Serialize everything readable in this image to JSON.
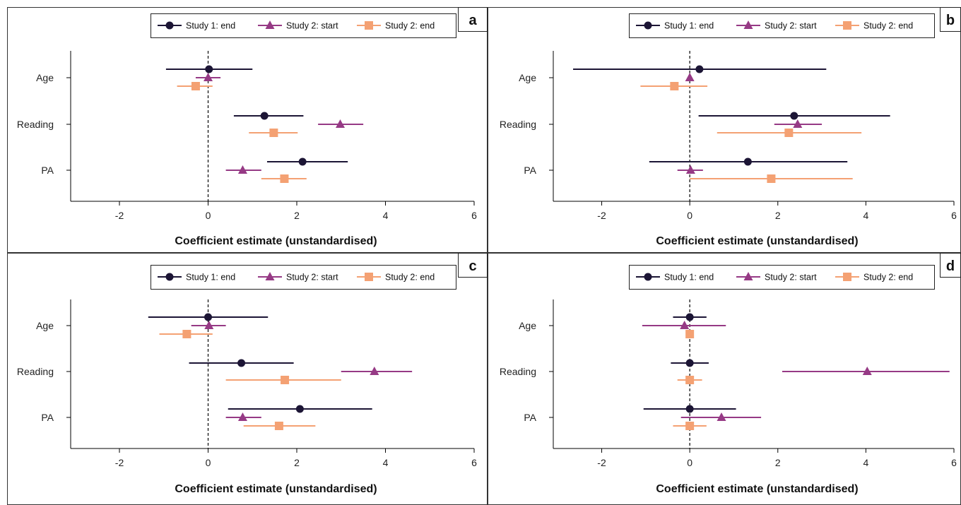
{
  "legend": [
    "Study 1: end",
    "Study 2: start",
    "Study 2: end"
  ],
  "colors": {
    "Study 1: end": "#1c1535",
    "Study 2: start": "#963a85",
    "Study 2: end": "#f4a173"
  },
  "markers": {
    "Study 1: end": "circle",
    "Study 2: start": "triangle",
    "Study 2: end": "square"
  },
  "chart_data": [
    {
      "panel": "a",
      "type": "scatter",
      "xlabel": "Coefficient estimate (unstandardised)",
      "xlim": [
        -3.1,
        6
      ],
      "xticks": [
        -2,
        0,
        2,
        4,
        6
      ],
      "reference_line": 0,
      "legend_position": "top",
      "categories": [
        "Age",
        "Reading",
        "PA"
      ],
      "series": [
        {
          "name": "Study 1: end",
          "points": [
            {
              "category": "Age",
              "estimate": 0.02,
              "lower": -0.95,
              "upper": 1.0
            },
            {
              "category": "Reading",
              "estimate": 1.27,
              "lower": 0.58,
              "upper": 2.15
            },
            {
              "category": "PA",
              "estimate": 2.13,
              "lower": 1.33,
              "upper": 3.15
            }
          ]
        },
        {
          "name": "Study 2: start",
          "points": [
            {
              "category": "Age",
              "estimate": 0.0,
              "lower": -0.28,
              "upper": 0.28
            },
            {
              "category": "Reading",
              "estimate": 2.98,
              "lower": 2.48,
              "upper": 3.5
            },
            {
              "category": "PA",
              "estimate": 0.78,
              "lower": 0.4,
              "upper": 1.2
            }
          ]
        },
        {
          "name": "Study 2: end",
          "points": [
            {
              "category": "Age",
              "estimate": -0.28,
              "lower": -0.7,
              "upper": 0.1
            },
            {
              "category": "Reading",
              "estimate": 1.48,
              "lower": 0.92,
              "upper": 2.02
            },
            {
              "category": "PA",
              "estimate": 1.72,
              "lower": 1.2,
              "upper": 2.22
            }
          ]
        }
      ]
    },
    {
      "panel": "b",
      "type": "scatter",
      "xlabel": "Coefficient estimate (unstandardised)",
      "xlim": [
        -3.1,
        6
      ],
      "xticks": [
        -2,
        0,
        2,
        4,
        6
      ],
      "reference_line": 0,
      "legend_position": "top",
      "categories": [
        "Age",
        "Reading",
        "PA"
      ],
      "series": [
        {
          "name": "Study 1: end",
          "points": [
            {
              "category": "Age",
              "estimate": 0.22,
              "lower": -2.65,
              "upper": 3.1
            },
            {
              "category": "Reading",
              "estimate": 2.37,
              "lower": 0.2,
              "upper": 4.55
            },
            {
              "category": "PA",
              "estimate": 1.32,
              "lower": -0.92,
              "upper": 3.58
            }
          ]
        },
        {
          "name": "Study 2: start",
          "points": [
            {
              "category": "Age",
              "estimate": 0.0,
              "lower": -0.05,
              "upper": 0.05
            },
            {
              "category": "Reading",
              "estimate": 2.45,
              "lower": 1.92,
              "upper": 3.0
            },
            {
              "category": "PA",
              "estimate": 0.02,
              "lower": -0.28,
              "upper": 0.3
            }
          ]
        },
        {
          "name": "Study 2: end",
          "points": [
            {
              "category": "Age",
              "estimate": -0.35,
              "lower": -1.12,
              "upper": 0.4
            },
            {
              "category": "Reading",
              "estimate": 2.25,
              "lower": 0.62,
              "upper": 3.9
            },
            {
              "category": "PA",
              "estimate": 1.85,
              "lower": 0.0,
              "upper": 3.7
            }
          ]
        }
      ]
    },
    {
      "panel": "c",
      "type": "scatter",
      "xlabel": "Coefficient estimate (unstandardised)",
      "xlim": [
        -3.1,
        6
      ],
      "xticks": [
        -2,
        0,
        2,
        4,
        6
      ],
      "reference_line": 0,
      "legend_position": "top",
      "categories": [
        "Age",
        "Reading",
        "PA"
      ],
      "series": [
        {
          "name": "Study 1: end",
          "points": [
            {
              "category": "Age",
              "estimate": 0.0,
              "lower": -1.35,
              "upper": 1.35
            },
            {
              "category": "Reading",
              "estimate": 0.75,
              "lower": -0.43,
              "upper": 1.93
            },
            {
              "category": "PA",
              "estimate": 2.07,
              "lower": 0.45,
              "upper": 3.7
            }
          ]
        },
        {
          "name": "Study 2: start",
          "points": [
            {
              "category": "Age",
              "estimate": 0.02,
              "lower": -0.38,
              "upper": 0.4
            },
            {
              "category": "Reading",
              "estimate": 3.75,
              "lower": 3.0,
              "upper": 4.6
            },
            {
              "category": "PA",
              "estimate": 0.78,
              "lower": 0.4,
              "upper": 1.2
            }
          ]
        },
        {
          "name": "Study 2: end",
          "points": [
            {
              "category": "Age",
              "estimate": -0.48,
              "lower": -1.1,
              "upper": 0.1
            },
            {
              "category": "Reading",
              "estimate": 1.73,
              "lower": 0.4,
              "upper": 3.0
            },
            {
              "category": "PA",
              "estimate": 1.6,
              "lower": 0.8,
              "upper": 2.42
            }
          ]
        }
      ]
    },
    {
      "panel": "d",
      "type": "scatter",
      "xlabel": "Coefficient estimate (unstandardised)",
      "xlim": [
        -3.1,
        6
      ],
      "xticks": [
        -2,
        0,
        2,
        4,
        6
      ],
      "reference_line": 0,
      "legend_position": "top",
      "categories": [
        "Age",
        "Reading",
        "PA"
      ],
      "series": [
        {
          "name": "Study 1: end",
          "points": [
            {
              "category": "Age",
              "estimate": 0.0,
              "lower": -0.38,
              "upper": 0.38
            },
            {
              "category": "Reading",
              "estimate": 0.0,
              "lower": -0.43,
              "upper": 0.43
            },
            {
              "category": "PA",
              "estimate": 0.0,
              "lower": -1.05,
              "upper": 1.05
            }
          ]
        },
        {
          "name": "Study 2: start",
          "points": [
            {
              "category": "Age",
              "estimate": -0.12,
              "lower": -1.08,
              "upper": 0.82
            },
            {
              "category": "Reading",
              "estimate": 4.03,
              "lower": 2.1,
              "upper": 5.9
            },
            {
              "category": "PA",
              "estimate": 0.72,
              "lower": -0.2,
              "upper": 1.62
            }
          ]
        },
        {
          "name": "Study 2: end",
          "points": [
            {
              "category": "Age",
              "estimate": 0.0,
              "lower": -0.05,
              "upper": 0.05
            },
            {
              "category": "Reading",
              "estimate": 0.0,
              "lower": -0.28,
              "upper": 0.28
            },
            {
              "category": "PA",
              "estimate": 0.0,
              "lower": -0.38,
              "upper": 0.38
            }
          ]
        }
      ]
    }
  ]
}
